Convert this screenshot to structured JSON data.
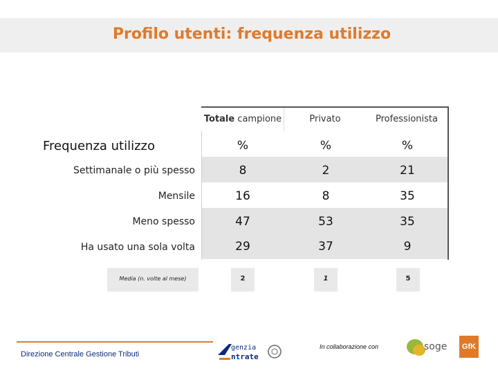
{
  "title": "Profilo utenti: frequenza utilizzo",
  "section_label": "Frequenza utilizzo",
  "columns": {
    "total_bold": "Totale",
    "total_rest": " campione",
    "private": "Privato",
    "professional": "Professionista"
  },
  "rows": [
    {
      "label": "",
      "total": "%",
      "private": "%",
      "professional": "%"
    },
    {
      "label": "Settimanale o più spesso",
      "total": "8",
      "private": "2",
      "professional": "21"
    },
    {
      "label": "Mensile",
      "total": "16",
      "private": "8",
      "professional": "35"
    },
    {
      "label": "Meno spesso",
      "total": "47",
      "private": "53",
      "professional": "35"
    },
    {
      "label": "Ha usato una sola volta",
      "total": "29",
      "private": "37",
      "professional": "9"
    }
  ],
  "media": {
    "label": "Media (n. volte al mese)",
    "total": "2",
    "private": "1",
    "professional": "5"
  },
  "footer": {
    "department": "Direzione Centrale Gestione Tributi",
    "collaboration": "In collaborazione con",
    "agenzia_top": "genzia",
    "agenzia_bottom": "ntrate",
    "sogei": "soge",
    "gfk": "GfK"
  },
  "colors": {
    "accent": "#e07a2a",
    "navy": "#0d2a7a",
    "band": "#e4e4e4"
  }
}
